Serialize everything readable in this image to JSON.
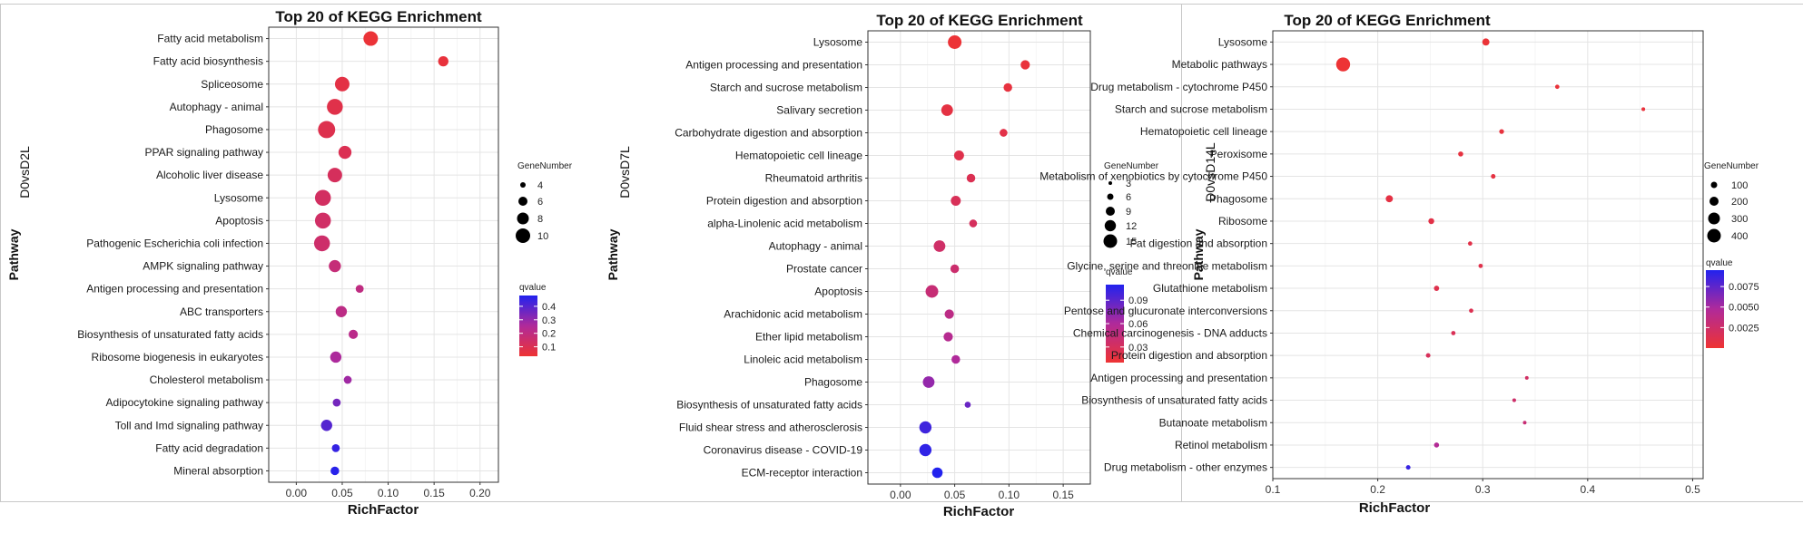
{
  "chart_data": [
    {
      "type": "scatter",
      "title": "Top 20 of KEGG Enrichment",
      "xlabel": "RichFactor",
      "ylabel": "Pathway",
      "group_label": "D0vsD2L",
      "xlim": [
        -0.03,
        0.22
      ],
      "xticks": [
        0.0,
        0.05,
        0.1,
        0.15,
        0.2
      ],
      "xtick_labels": [
        "0.00",
        "0.05",
        "0.10",
        "0.15",
        "0.20"
      ],
      "grid": true,
      "legend_position": "right",
      "size_legend": {
        "title": "GeneNumber",
        "values": [
          4,
          6,
          8,
          10
        ],
        "labels": [
          "4",
          "6",
          "8",
          "10"
        ]
      },
      "color_legend": {
        "title": "qvalue",
        "min": 0.03,
        "max": 0.48,
        "ticks": [
          0.1,
          0.2,
          0.3,
          0.4
        ],
        "tick_labels": [
          "0.1",
          "0.2",
          "0.3",
          "0.4"
        ],
        "low_color": "#ee3333",
        "high_color": "#2222ee"
      },
      "points": [
        {
          "pathway": "Fatty acid metabolism",
          "x": 0.081,
          "size": 10,
          "q": 0.04
        },
        {
          "pathway": "Fatty acid biosynthesis",
          "x": 0.16,
          "size": 5,
          "q": 0.05
        },
        {
          "pathway": "Spliceosome",
          "x": 0.05,
          "size": 10,
          "q": 0.07
        },
        {
          "pathway": "Autophagy - animal",
          "x": 0.042,
          "size": 12,
          "q": 0.08
        },
        {
          "pathway": "Phagosome",
          "x": 0.033,
          "size": 14,
          "q": 0.09
        },
        {
          "pathway": "PPAR signaling pathway",
          "x": 0.053,
          "size": 8,
          "q": 0.1
        },
        {
          "pathway": "Alcoholic liver disease",
          "x": 0.042,
          "size": 10,
          "q": 0.12
        },
        {
          "pathway": "Lysosome",
          "x": 0.029,
          "size": 12,
          "q": 0.13
        },
        {
          "pathway": "Apoptosis",
          "x": 0.029,
          "size": 12,
          "q": 0.14
        },
        {
          "pathway": "Pathogenic Escherichia coli infection",
          "x": 0.028,
          "size": 12,
          "q": 0.15
        },
        {
          "pathway": "AMPK signaling pathway",
          "x": 0.042,
          "size": 7,
          "q": 0.18
        },
        {
          "pathway": "Antigen processing and presentation",
          "x": 0.069,
          "size": 3,
          "q": 0.2
        },
        {
          "pathway": "ABC transporters",
          "x": 0.049,
          "size": 6,
          "q": 0.21
        },
        {
          "pathway": "Biosynthesis of unsaturated fatty acids",
          "x": 0.062,
          "size": 4,
          "q": 0.22
        },
        {
          "pathway": "Ribosome biogenesis in eukaryotes",
          "x": 0.043,
          "size": 6,
          "q": 0.26
        },
        {
          "pathway": "Cholesterol metabolism",
          "x": 0.056,
          "size": 3,
          "q": 0.28
        },
        {
          "pathway": "Adipocytokine signaling pathway",
          "x": 0.044,
          "size": 3,
          "q": 0.35
        },
        {
          "pathway": "Toll and Imd signaling pathway",
          "x": 0.033,
          "size": 6,
          "q": 0.4
        },
        {
          "pathway": "Fatty acid degradation",
          "x": 0.043,
          "size": 3,
          "q": 0.45
        },
        {
          "pathway": "Mineral absorption",
          "x": 0.042,
          "size": 3.5,
          "q": 0.47
        }
      ]
    },
    {
      "type": "scatter",
      "title": "Top 20 of KEGG Enrichment",
      "xlabel": "RichFactor",
      "ylabel": "Pathway",
      "group_label": "D0vsD7L",
      "xlim": [
        -0.03,
        0.175
      ],
      "xticks": [
        0.0,
        0.05,
        0.1,
        0.15
      ],
      "xtick_labels": [
        "0.00",
        "0.05",
        "0.10",
        "0.15"
      ],
      "grid": true,
      "legend_position": "right",
      "size_legend": {
        "title": "GeneNumber",
        "values": [
          3,
          6,
          9,
          12,
          15
        ],
        "labels": [
          "3",
          "6",
          "9",
          "12",
          "15"
        ]
      },
      "color_legend": {
        "title": "qvalue",
        "min": 0.01,
        "max": 0.11,
        "ticks": [
          0.03,
          0.06,
          0.09
        ],
        "tick_labels": [
          "0.03",
          "0.06",
          "0.09"
        ],
        "low_color": "#ee3333",
        "high_color": "#2222ee"
      },
      "points": [
        {
          "pathway": "Lysosome",
          "x": 0.05,
          "size": 15,
          "q": 0.012
        },
        {
          "pathway": "Antigen processing and presentation",
          "x": 0.115,
          "size": 7,
          "q": 0.014
        },
        {
          "pathway": "Starch and sucrose metabolism",
          "x": 0.099,
          "size": 6,
          "q": 0.016
        },
        {
          "pathway": "Salivary secretion",
          "x": 0.043,
          "size": 11,
          "q": 0.018
        },
        {
          "pathway": "Carbohydrate digestion and absorption",
          "x": 0.095,
          "size": 5,
          "q": 0.02
        },
        {
          "pathway": "Hematopoietic cell lineage",
          "x": 0.054,
          "size": 8,
          "q": 0.022
        },
        {
          "pathway": "Rheumatoid arthritis",
          "x": 0.065,
          "size": 6,
          "q": 0.025
        },
        {
          "pathway": "Protein digestion and absorption",
          "x": 0.051,
          "size": 8,
          "q": 0.028
        },
        {
          "pathway": "alpha-Linolenic acid metabolism",
          "x": 0.067,
          "size": 5,
          "q": 0.03
        },
        {
          "pathway": "Autophagy - animal",
          "x": 0.036,
          "size": 11,
          "q": 0.035
        },
        {
          "pathway": "Prostate cancer",
          "x": 0.05,
          "size": 6,
          "q": 0.038
        },
        {
          "pathway": "Apoptosis",
          "x": 0.029,
          "size": 13,
          "q": 0.042
        },
        {
          "pathway": "Arachidonic acid metabolism",
          "x": 0.045,
          "size": 7,
          "q": 0.05
        },
        {
          "pathway": "Ether lipid metabolism",
          "x": 0.044,
          "size": 7,
          "q": 0.055
        },
        {
          "pathway": "Linoleic acid metabolism",
          "x": 0.051,
          "size": 6,
          "q": 0.06
        },
        {
          "pathway": "Phagosome",
          "x": 0.026,
          "size": 11,
          "q": 0.07
        },
        {
          "pathway": "Biosynthesis of unsaturated fatty acids",
          "x": 0.062,
          "size": 3,
          "q": 0.085
        },
        {
          "pathway": "Fluid shear stress and atherosclerosis",
          "x": 0.023,
          "size": 12,
          "q": 0.1
        },
        {
          "pathway": "Coronavirus disease - COVID-19",
          "x": 0.023,
          "size": 12,
          "q": 0.105
        },
        {
          "pathway": "ECM-receptor interaction",
          "x": 0.034,
          "size": 9,
          "q": 0.11
        }
      ]
    },
    {
      "type": "scatter",
      "title": "Top 20 of KEGG Enrichment",
      "xlabel": "RichFactor",
      "ylabel": "Pathway",
      "group_label": "D0vsD14L",
      "xlim": [
        0.1,
        0.51
      ],
      "xticks": [
        0.1,
        0.2,
        0.3,
        0.4,
        0.5
      ],
      "xtick_labels": [
        "0.1",
        "0.2",
        "0.3",
        "0.4",
        "0.5"
      ],
      "grid": true,
      "legend_position": "right",
      "size_legend": {
        "title": "GeneNumber",
        "values": [
          100,
          200,
          300,
          400
        ],
        "labels": [
          "100",
          "200",
          "300",
          "400"
        ]
      },
      "color_legend": {
        "title": "qvalue",
        "min": 0.0,
        "max": 0.0095,
        "ticks": [
          0.0025,
          0.005,
          0.0075
        ],
        "tick_labels": [
          "0.0025",
          "0.0050",
          "0.0075"
        ],
        "low_color": "#ee3333",
        "high_color": "#2222ee"
      },
      "points": [
        {
          "pathway": "Lysosome",
          "x": 0.303,
          "size": 110,
          "q": 0.0002
        },
        {
          "pathway": "Metabolic pathways",
          "x": 0.167,
          "size": 420,
          "q": 0.0001
        },
        {
          "pathway": "Drug metabolism - cytochrome P450",
          "x": 0.371,
          "size": 40,
          "q": 0.0003
        },
        {
          "pathway": "Starch and sucrose metabolism",
          "x": 0.453,
          "size": 30,
          "q": 0.0004
        },
        {
          "pathway": "Hematopoietic cell lineage",
          "x": 0.318,
          "size": 50,
          "q": 0.0005
        },
        {
          "pathway": "Peroxisome",
          "x": 0.279,
          "size": 55,
          "q": 0.0006
        },
        {
          "pathway": "Metabolism of xenobiotics by cytochrome P450",
          "x": 0.31,
          "size": 45,
          "q": 0.0007
        },
        {
          "pathway": "Phagosome",
          "x": 0.211,
          "size": 110,
          "q": 0.0008
        },
        {
          "pathway": "Ribosome",
          "x": 0.251,
          "size": 75,
          "q": 0.0009
        },
        {
          "pathway": "Fat digestion and absorption",
          "x": 0.288,
          "size": 40,
          "q": 0.001
        },
        {
          "pathway": "Glycine, serine and threonine metabolism",
          "x": 0.298,
          "size": 40,
          "q": 0.0011
        },
        {
          "pathway": "Glutathione metabolism",
          "x": 0.256,
          "size": 60,
          "q": 0.0012
        },
        {
          "pathway": "Pentose and glucuronate interconversions",
          "x": 0.289,
          "size": 40,
          "q": 0.0014
        },
        {
          "pathway": "Chemical carcinogenesis - DNA adducts",
          "x": 0.272,
          "size": 40,
          "q": 0.0016
        },
        {
          "pathway": "Protein digestion and absorption",
          "x": 0.248,
          "size": 45,
          "q": 0.0018
        },
        {
          "pathway": "Antigen processing and presentation",
          "x": 0.342,
          "size": 28,
          "q": 0.0022
        },
        {
          "pathway": "Biosynthesis of unsaturated fatty acids",
          "x": 0.33,
          "size": 30,
          "q": 0.0025
        },
        {
          "pathway": "Butanoate metabolism",
          "x": 0.34,
          "size": 28,
          "q": 0.003
        },
        {
          "pathway": "Retinol metabolism",
          "x": 0.256,
          "size": 55,
          "q": 0.0045
        },
        {
          "pathway": "Drug metabolism - other enzymes",
          "x": 0.229,
          "size": 45,
          "q": 0.0088
        }
      ]
    }
  ]
}
